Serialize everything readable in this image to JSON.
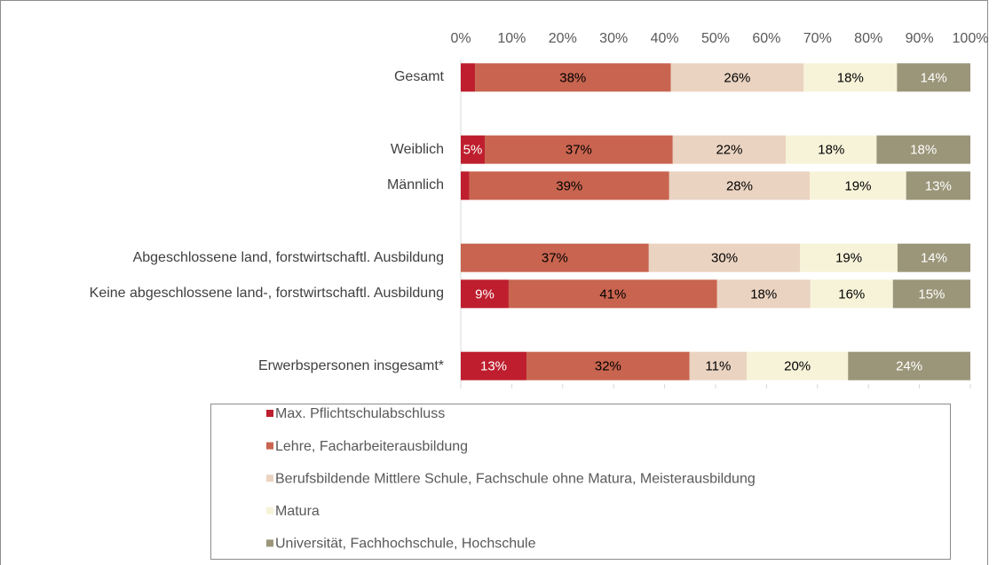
{
  "chart_data": {
    "type": "stacked-bar-horizontal",
    "categories": [
      "Gesamt",
      null,
      "Weiblich",
      "Männlich",
      null,
      "Abgeschlossene land, forstwirtschaftl. Ausbildung",
      "Keine abgeschlossene land-, forstwirtschaftl. Ausbildung",
      null,
      "Erwerbspersonen insgesamt*"
    ],
    "xlim": [
      0,
      100
    ],
    "xticks": [
      {
        "value": 0,
        "label": "0%"
      },
      {
        "value": 10,
        "label": "10%"
      },
      {
        "value": 20,
        "label": "20%"
      },
      {
        "value": 30,
        "label": "30%"
      },
      {
        "value": 40,
        "label": "40%"
      },
      {
        "value": 50,
        "label": "50%"
      },
      {
        "value": 60,
        "label": "60%"
      },
      {
        "value": 70,
        "label": "70%"
      },
      {
        "value": 80,
        "label": "80%"
      },
      {
        "value": 90,
        "label": "90%"
      },
      {
        "value": 100,
        "label": "100%"
      }
    ],
    "series": [
      {
        "name": "Max. Pflichtschulabschluss",
        "color": "#be1e2d",
        "label_color": "#ffffff",
        "values": [
          2.8,
          null,
          4.7,
          1.7,
          null,
          0,
          9.4,
          null,
          12.9
        ],
        "value_labels": [
          null,
          null,
          "5%",
          null,
          null,
          null,
          "9%",
          null,
          "13%"
        ]
      },
      {
        "name": "Lehre, Facharbeiterausbildung",
        "color": "#c8644f",
        "label_color": "#000000",
        "values": [
          38.4,
          null,
          36.9,
          39.2,
          null,
          36.9,
          40.9,
          null,
          32.0
        ],
        "value_labels": [
          "38%",
          null,
          "37%",
          "39%",
          null,
          "37%",
          "41%",
          null,
          "32%"
        ]
      },
      {
        "name": "Berufsbildende Mittlere Schule, Fachschule ohne Matura, Meisterausbildung",
        "color": "#ead3c1",
        "label_color": "#000000",
        "values": [
          26.1,
          null,
          22.2,
          27.6,
          null,
          29.7,
          18.3,
          null,
          11.2
        ],
        "value_labels": [
          "26%",
          null,
          "22%",
          "28%",
          null,
          "30%",
          "18%",
          null,
          "11%"
        ]
      },
      {
        "name": "Matura",
        "color": "#f7f3d9",
        "label_color": "#000000",
        "values": [
          18.3,
          null,
          17.8,
          18.9,
          null,
          19.1,
          16.2,
          null,
          19.9
        ],
        "value_labels": [
          "18%",
          null,
          "18%",
          "19%",
          null,
          "19%",
          "16%",
          null,
          "20%"
        ]
      },
      {
        "name": "Universität, Fachhochschule, Hochschule",
        "color": "#9b9679",
        "label_color": "#ffffff",
        "values": [
          14.4,
          null,
          18.4,
          12.6,
          null,
          14.3,
          15.2,
          null,
          24.0
        ],
        "value_labels": [
          "14%",
          null,
          "18%",
          "13%",
          null,
          "14%",
          "15%",
          null,
          "24%"
        ]
      }
    ]
  }
}
